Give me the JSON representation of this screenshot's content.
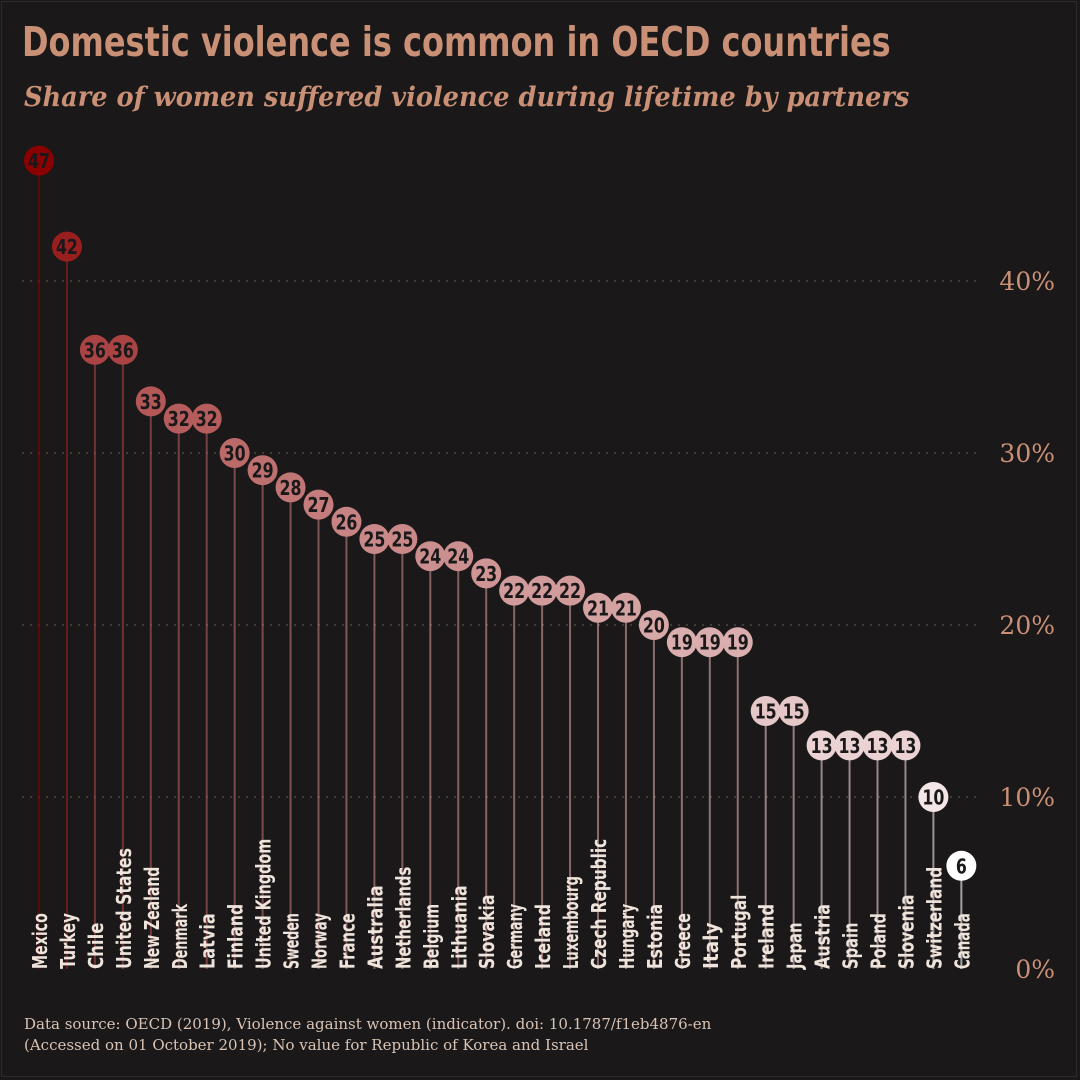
{
  "chart_data": {
    "type": "lollipop",
    "title": "Domestic violence is common in OECD countries",
    "subtitle": "Share of women suffered violence during lifetime by partners",
    "xlabel": "",
    "ylabel": "",
    "ylim": [
      0,
      47
    ],
    "y_ticks": [
      0,
      10,
      20,
      30,
      40
    ],
    "y_tick_labels": [
      "0%",
      "10%",
      "20%",
      "30%",
      "40%"
    ],
    "grid": true,
    "categories": [
      "Mexico",
      "Turkey",
      "Chile",
      "United States",
      "New Zealand",
      "Denmark",
      "Latvia",
      "Finland",
      "United Kingdom",
      "Sweden",
      "Norway",
      "France",
      "Australia",
      "Netherlands",
      "Belgium",
      "Lithuania",
      "Slovakia",
      "Germany",
      "Iceland",
      "Luxembourg",
      "Czech Republic",
      "Hungary",
      "Estonia",
      "Greece",
      "Italy",
      "Portugal",
      "Ireland",
      "Japan",
      "Austria",
      "Spain",
      "Poland",
      "Slovenia",
      "Switzerland",
      "Canada"
    ],
    "values": [
      47,
      42,
      36,
      36,
      33,
      32,
      32,
      30,
      29,
      28,
      27,
      26,
      25,
      25,
      24,
      24,
      23,
      22,
      22,
      22,
      21,
      21,
      20,
      19,
      19,
      19,
      15,
      15,
      13,
      13,
      13,
      13,
      10,
      6
    ],
    "caption_lines": [
      "Data source: OECD (2019), Violence against women (indicator). doi: 10.1787/f1eb4876-en",
      "(Accessed on 01 October 2019); No value for Republic of Korea and Israel"
    ],
    "colors": {
      "background": "#1a1819",
      "text_accent": "#c99076",
      "grid": "#5a524c",
      "low": "#ffffff",
      "high": "#8b0000",
      "country_label": "#eee4dc"
    }
  }
}
